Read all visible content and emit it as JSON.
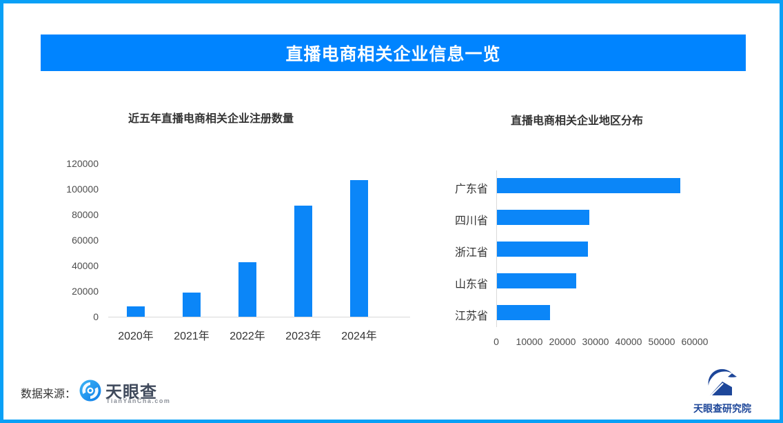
{
  "banner": {
    "title": "直播电商相关企业信息一览",
    "bg_color": "#0084ff",
    "text_color": "#ffffff"
  },
  "frame": {
    "border_color": "#09a0f6"
  },
  "chart_data": [
    {
      "type": "bar",
      "orientation": "vertical",
      "title": "近五年直播电商相关企业注册数量",
      "categories": [
        "2020年",
        "2021年",
        "2022年",
        "2023年",
        "2024年"
      ],
      "values": [
        8000,
        19000,
        42500,
        87000,
        107000
      ],
      "xlabel": "",
      "ylabel": "",
      "yticks": [
        0,
        20000,
        40000,
        60000,
        80000,
        100000,
        120000
      ],
      "ylim": [
        0,
        120000
      ],
      "grid": false,
      "legend": "none",
      "bar_color": "#0b86f8",
      "axis_color": "#d9d9d9"
    },
    {
      "type": "bar",
      "orientation": "horizontal",
      "title": "直播电商相关企业地区分布",
      "categories": [
        "广东省",
        "四川省",
        "浙江省",
        "山东省",
        "江苏省"
      ],
      "values": [
        55500,
        28000,
        27500,
        24000,
        16000
      ],
      "xlabel": "",
      "ylabel": "",
      "xticks": [
        0,
        10000,
        20000,
        30000,
        40000,
        50000,
        60000
      ],
      "xlim": [
        0,
        60000
      ],
      "grid": false,
      "legend": "none",
      "bar_color": "#0b86f8",
      "axis_color": "#d9d9d9"
    }
  ],
  "footer": {
    "source_label": "数据来源：",
    "tianyancha": {
      "name": "天眼查",
      "domain": "TianYanCha.com",
      "icon_color": "#1f96ee"
    },
    "research": {
      "text": "天眼查研究院",
      "icon_color": "#1d4699"
    }
  }
}
